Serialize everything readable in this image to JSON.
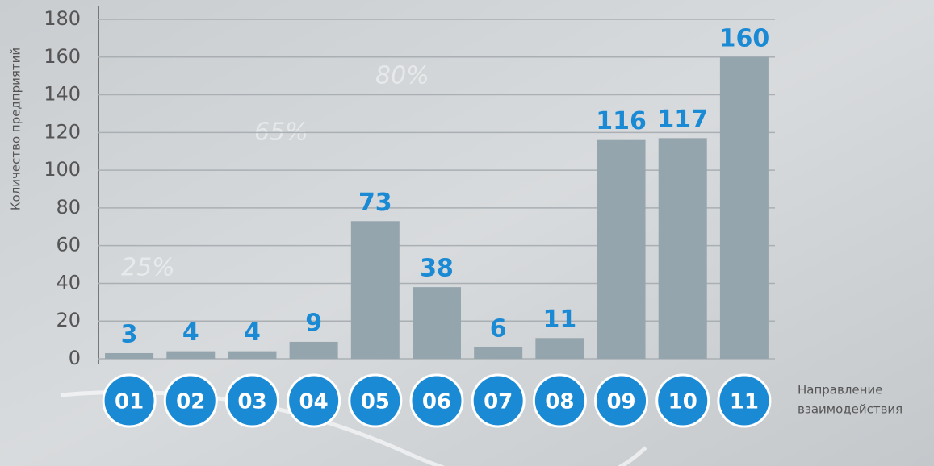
{
  "chart_data": {
    "type": "bar",
    "y_label": "Количество предприятий",
    "x_label": [
      "Направление",
      "взаимодействия"
    ],
    "annotations": [
      "25%",
      "65%",
      "80%"
    ],
    "categories": [
      "01",
      "02",
      "03",
      "04",
      "05",
      "06",
      "07",
      "08",
      "09",
      "10",
      "11"
    ],
    "values": [
      3,
      4,
      4,
      9,
      73,
      38,
      6,
      11,
      116,
      117,
      160
    ],
    "color": "#95a5ad",
    "label_color": "#1a8ad4",
    "ylim": [
      0,
      180
    ],
    "yticks": [
      0,
      20,
      40,
      60,
      80,
      100,
      120,
      140,
      160,
      180
    ],
    "grid": true
  }
}
